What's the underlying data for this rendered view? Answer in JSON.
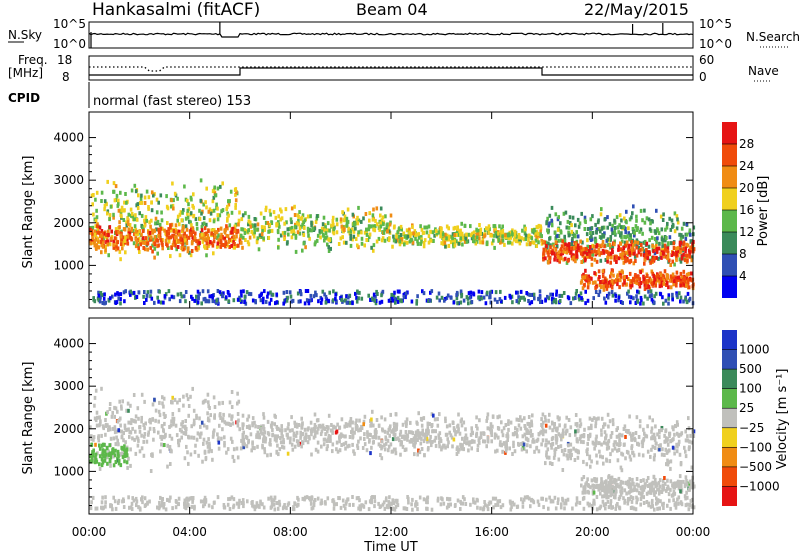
{
  "header": {
    "station": "Hankasalmi (fitACF)",
    "beam": "Beam 04",
    "date": "22/May/2015"
  },
  "top_panels": {
    "nsky_label": "N.Sky",
    "nsky_ticks": [
      "10^5",
      "10^0"
    ],
    "nsearch_label": "N.Search",
    "nsearch_ticks": [
      "10^5",
      "10^0"
    ],
    "freq_label_1": "Freq.",
    "freq_label_2": "[MHz]",
    "freq_ticks": [
      "18",
      "8"
    ],
    "nave_label": "Nave",
    "nave_ticks": [
      "60",
      "0"
    ],
    "cpid_label": "CPID",
    "cpid_text": "normal (fast stereo) 153"
  },
  "colors": {
    "power_scale": [
      "#0000f0",
      "#2f4fb4",
      "#3a8a5a",
      "#5cb84a",
      "#f0d01e",
      "#f08c14",
      "#f04b0a",
      "#e61414"
    ],
    "velocity_scale": [
      "#e61414",
      "#f04b0a",
      "#f08c14",
      "#f0d01e",
      "#c0c0bc",
      "#5cb84a",
      "#3a8a5a",
      "#2f4fb4",
      "#1c34c8"
    ]
  },
  "chart_data": [
    {
      "type": "heatmap",
      "name": "power-panel",
      "ylabel": "Slant Range [km]",
      "xlabel": "",
      "xlim": [
        0,
        24
      ],
      "ylim": [
        0,
        4600
      ],
      "yticks": [
        "1000",
        "2000",
        "3000",
        "4000"
      ],
      "colorbar": {
        "label": "Power [dB]",
        "ticks": [
          "4",
          "8",
          "12",
          "16",
          "20",
          "24",
          "28"
        ],
        "range": [
          0,
          32
        ]
      },
      "bands": [
        {
          "t": [
            0,
            6
          ],
          "range_km": [
            1100,
            3000
          ],
          "level_db": 16
        },
        {
          "t": [
            0,
            6
          ],
          "range_km": [
            1300,
            2000
          ],
          "level_db": 24
        },
        {
          "t": [
            6,
            12
          ],
          "range_km": [
            1300,
            2400
          ],
          "level_db": 16
        },
        {
          "t": [
            12,
            18
          ],
          "range_km": [
            1400,
            2000
          ],
          "level_db": 16
        },
        {
          "t": [
            18,
            24
          ],
          "range_km": [
            1000,
            2400
          ],
          "level_db": 12
        },
        {
          "t": [
            18,
            24
          ],
          "range_km": [
            1000,
            1600
          ],
          "level_db": 26
        },
        {
          "t": [
            19.5,
            24
          ],
          "range_km": [
            400,
            900
          ],
          "level_db": 26
        }
      ]
    },
    {
      "type": "heatmap",
      "name": "velocity-panel",
      "ylabel": "Slant Range [km]",
      "xlabel": "Time UT",
      "xlim": [
        0,
        24
      ],
      "ylim": [
        0,
        4600
      ],
      "yticks": [
        "1000",
        "2000",
        "3000",
        "4000"
      ],
      "xticks": [
        "00:00",
        "04:00",
        "08:00",
        "12:00",
        "16:00",
        "20:00",
        "00:00"
      ],
      "colorbar": {
        "label": "Velocity [m s⁻¹]",
        "ticks": [
          "1000",
          "500",
          "100",
          "25",
          "−25",
          "−100",
          "−500",
          "−1000"
        ]
      },
      "bands": [
        {
          "t": [
            0,
            6
          ],
          "range_km": [
            1000,
            3000
          ],
          "velocity": 0
        },
        {
          "t": [
            0,
            1.5
          ],
          "range_km": [
            1100,
            1700
          ],
          "velocity": 200
        },
        {
          "t": [
            6,
            18
          ],
          "range_km": [
            1300,
            2400
          ],
          "velocity": 0
        },
        {
          "t": [
            18,
            24
          ],
          "range_km": [
            1000,
            2400
          ],
          "velocity": 0
        },
        {
          "t": [
            19.5,
            24
          ],
          "range_km": [
            400,
            900
          ],
          "velocity": 0
        }
      ]
    }
  ]
}
